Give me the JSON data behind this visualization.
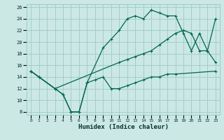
{
  "xlabel": "Humidex (Indice chaleur)",
  "bg_color": "#cce8e4",
  "grid_color": "#99ccc6",
  "line_color": "#006655",
  "xlim": [
    -0.5,
    23.5
  ],
  "ylim": [
    7.5,
    26.5
  ],
  "xticks": [
    0,
    1,
    2,
    3,
    4,
    5,
    6,
    7,
    8,
    9,
    10,
    11,
    12,
    13,
    14,
    15,
    16,
    17,
    18,
    19,
    20,
    21,
    22,
    23
  ],
  "yticks": [
    8,
    10,
    12,
    14,
    16,
    18,
    20,
    22,
    24,
    26
  ],
  "series": [
    {
      "x": [
        0,
        1,
        3,
        4,
        5,
        6,
        7,
        9,
        10,
        11,
        12,
        13,
        14,
        15,
        16,
        17,
        18,
        19,
        20,
        21,
        22,
        23
      ],
      "y": [
        15,
        14,
        12,
        11,
        8,
        8,
        13,
        19,
        20.5,
        22.0,
        24.0,
        24.5,
        24.0,
        25.5,
        25.0,
        24.5,
        24.5,
        21.5,
        18.5,
        21.5,
        18.5,
        16.5
      ]
    },
    {
      "x": [
        0,
        1,
        3,
        11,
        12,
        13,
        14,
        15,
        16,
        17,
        18,
        19,
        20,
        21,
        22,
        23
      ],
      "y": [
        15,
        14,
        12,
        16.5,
        17,
        17.5,
        18,
        18.5,
        19.5,
        20.5,
        21.5,
        22,
        21.5,
        18.5,
        18.5,
        24.0
      ]
    },
    {
      "x": [
        0,
        1,
        3,
        4,
        5,
        6,
        7,
        8,
        9,
        10,
        11,
        12,
        13,
        14,
        15,
        16,
        17,
        18,
        23
      ],
      "y": [
        15,
        14,
        12,
        11,
        8,
        8,
        13,
        13.5,
        14,
        12,
        12,
        12.5,
        13,
        13.5,
        14,
        14,
        14.5,
        14.5,
        15.0
      ]
    }
  ]
}
